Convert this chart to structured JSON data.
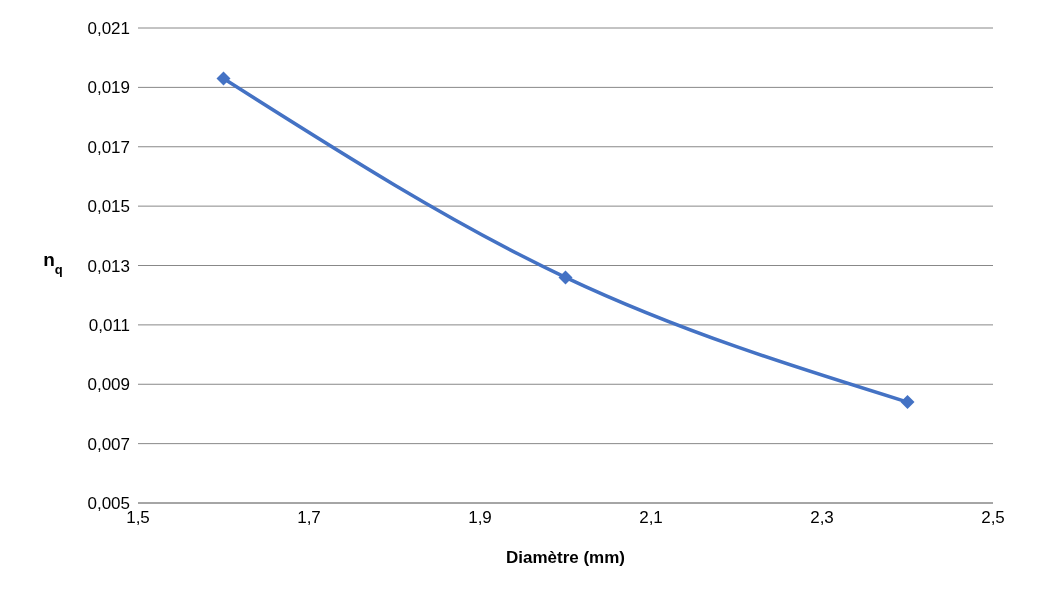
{
  "chart_data": {
    "type": "line",
    "xlabel": "Diamètre (mm)",
    "ylabel": "n$_{q}$",
    "x": [
      1.6,
      2.0,
      2.4
    ],
    "series": [
      {
        "color": "#4472c4",
        "values": [
          0.0193,
          0.0126,
          0.0084
        ]
      }
    ],
    "xlim": [
      1.5,
      2.5
    ],
    "xticks": [
      {
        "value": 1.5,
        "label": "1,5"
      },
      {
        "value": 1.7,
        "label": "1,7"
      },
      {
        "value": 1.9,
        "label": "1,9"
      },
      {
        "value": 2.1,
        "label": "2,1"
      },
      {
        "value": 2.3,
        "label": "2,3"
      },
      {
        "value": 2.5,
        "label": "2,5"
      }
    ],
    "ylim": [
      0.005,
      0.021
    ],
    "yticks": [
      {
        "value": 0.005,
        "label": "0,005"
      },
      {
        "value": 0.007,
        "label": "0,007"
      },
      {
        "value": 0.009,
        "label": "0,009"
      },
      {
        "value": 0.011,
        "label": "0,011"
      },
      {
        "value": 0.013,
        "label": "0,013"
      },
      {
        "value": 0.015,
        "label": "0,015"
      },
      {
        "value": 0.017,
        "label": "0,017"
      },
      {
        "value": 0.019,
        "label": "0,019"
      },
      {
        "value": 0.021,
        "label": "0,021"
      }
    ],
    "grid": "y",
    "marker": "diamond",
    "legend": false
  }
}
